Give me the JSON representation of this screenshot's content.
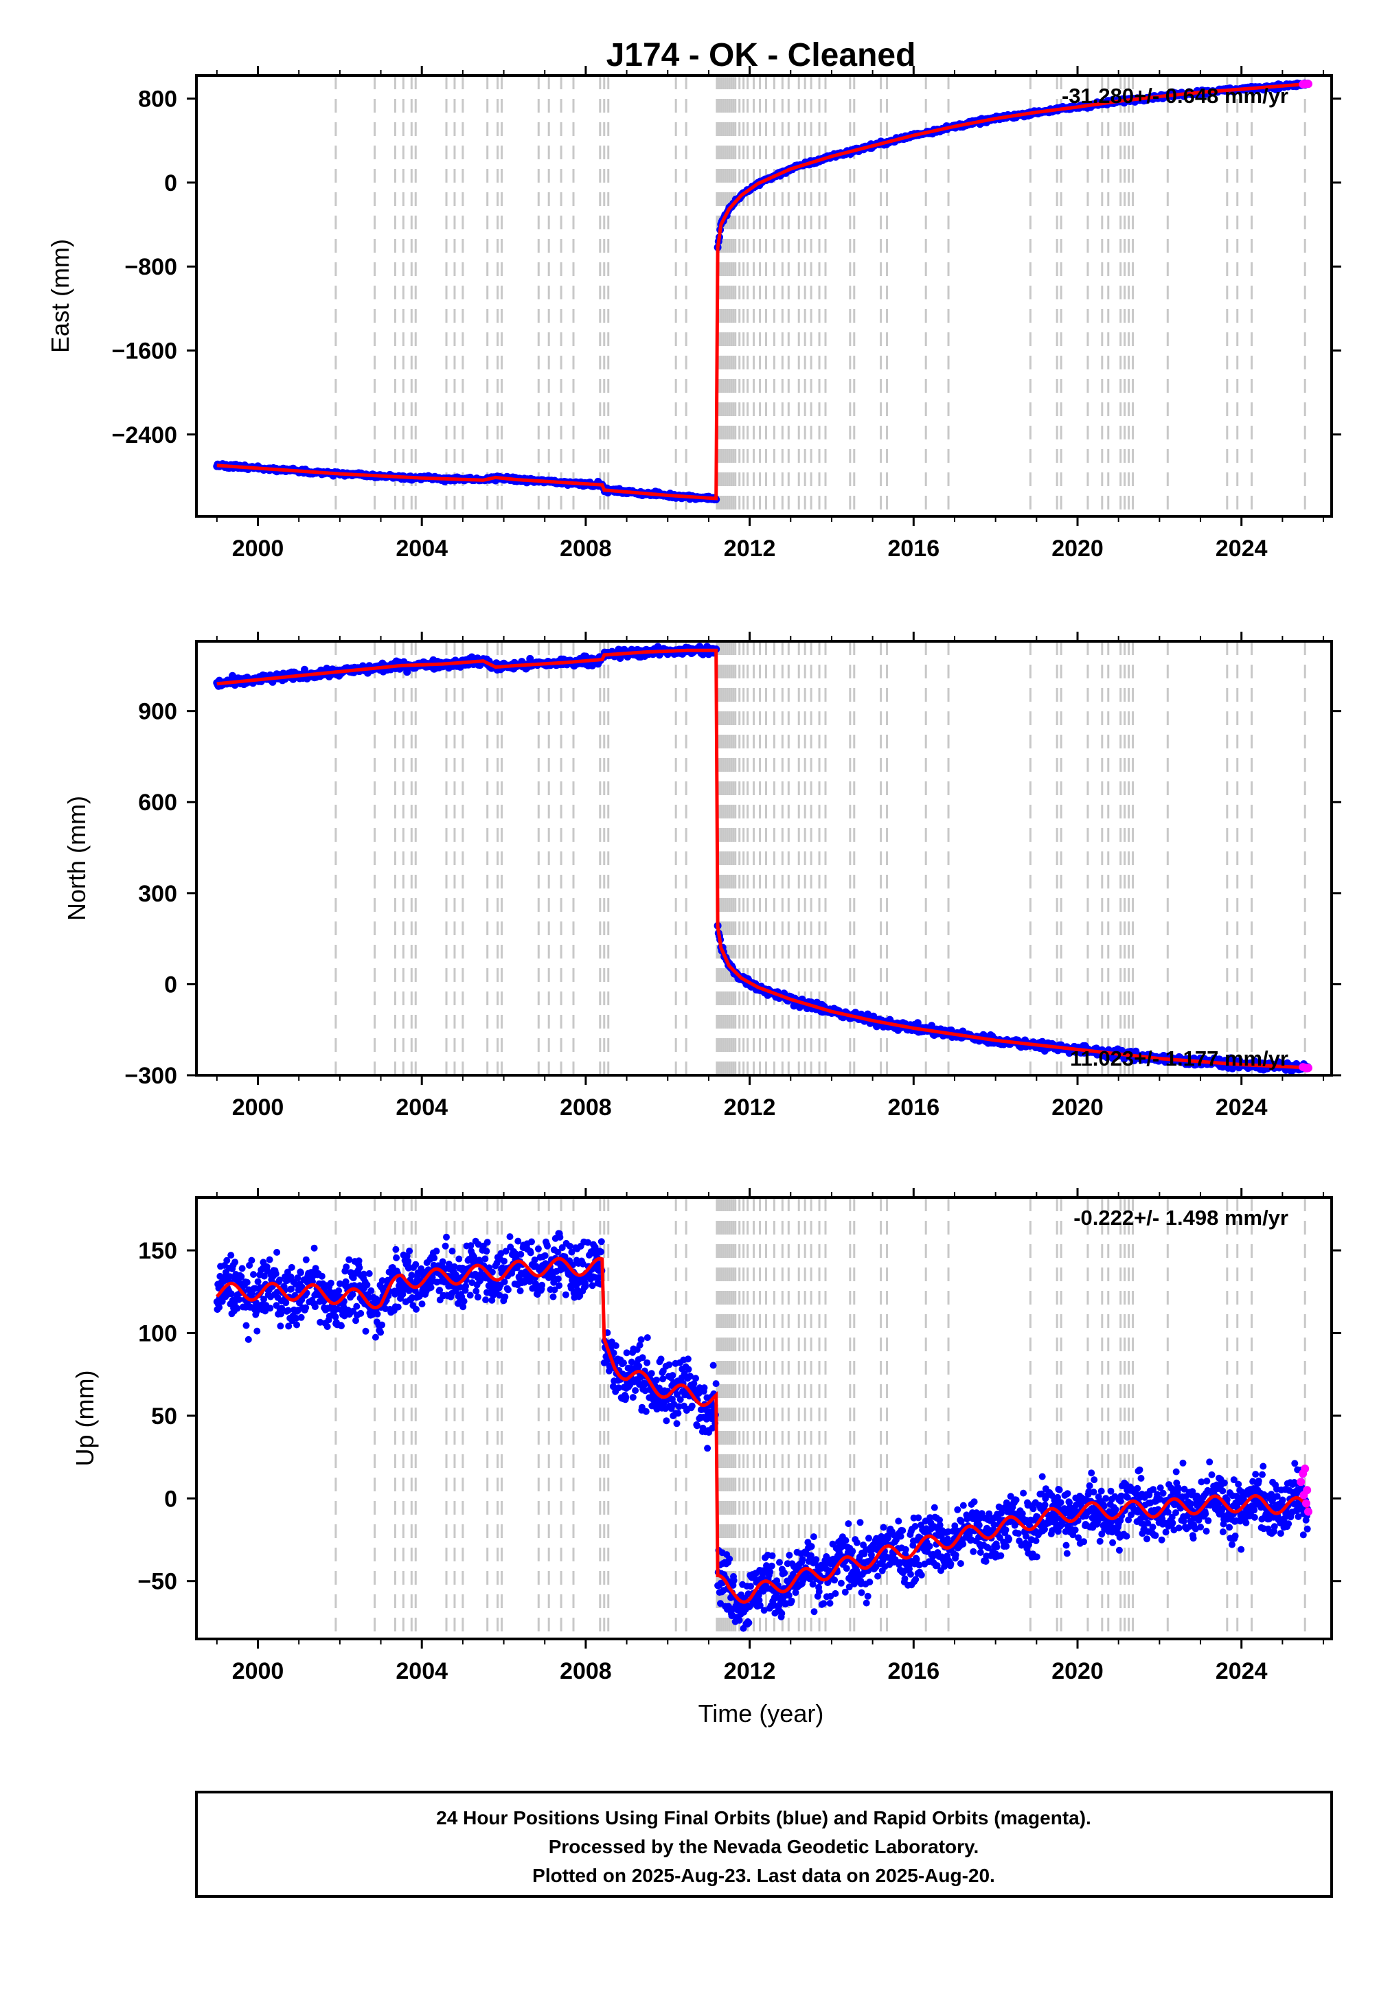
{
  "title": "J174  - OK - Cleaned",
  "colors": {
    "final": "#0000ff",
    "rapid": "#ff00ff",
    "model": "#ff0000",
    "event_lines": "#c8c8c8",
    "frame": "#000000"
  },
  "x_axis": {
    "label": "Time (year)",
    "range": [
      1998.5,
      2026.2
    ],
    "ticks": [
      2000,
      2004,
      2008,
      2012,
      2016,
      2020,
      2024
    ],
    "tick_labels": [
      "2000",
      "2004",
      "2008",
      "2012",
      "2016",
      "2020",
      "2024"
    ]
  },
  "event_lines": [
    2001.9,
    2002.85,
    2003.35,
    2003.55,
    2003.75,
    2003.85,
    2004.6,
    2004.8,
    2005.0,
    2005.6,
    2005.85,
    2005.95,
    2006.85,
    2007.1,
    2007.4,
    2007.7,
    2008.35,
    2008.45,
    2008.55,
    2010.2,
    2010.45,
    2011.2,
    2011.25,
    2011.3,
    2011.35,
    2011.4,
    2011.45,
    2011.5,
    2011.55,
    2011.6,
    2011.65,
    2011.75,
    2011.85,
    2011.95,
    2012.1,
    2012.25,
    2012.4,
    2012.6,
    2012.8,
    2012.95,
    2013.2,
    2013.35,
    2013.5,
    2013.7,
    2013.85,
    2014.45,
    2014.55,
    2015.2,
    2015.35,
    2016.3,
    2016.85,
    2018.85,
    2019.5,
    2019.6,
    2020.25,
    2020.6,
    2020.75,
    2021.05,
    2021.15,
    2021.25,
    2021.35,
    2022.2,
    2023.65,
    2023.9,
    2024.25,
    2025.55
  ],
  "chart_data": [
    {
      "type": "scatter",
      "panel": "east",
      "ylabel": "East (mm)",
      "ylim": [
        -3180,
        1020
      ],
      "yticks": [
        -2400,
        -1600,
        -800,
        0,
        800
      ],
      "ytick_labels": [
        "−2400",
        "−1600",
        "−800",
        "0",
        "800"
      ],
      "rate_label": "-31.280+/- 0.648 mm/yr",
      "scatter": 10,
      "segments": [
        {
          "x": [
            1999.0,
            2002.0,
            2004.0,
            2005.5,
            2005.8,
            2006.3,
            2008.4,
            2008.45,
            2010.0,
            2011.18
          ],
          "y": [
            -2695,
            -2775,
            -2815,
            -2835,
            -2810,
            -2830,
            -2880,
            -2930,
            -2980,
            -3010
          ]
        },
        {
          "x": [
            2011.22,
            2011.3,
            2011.5,
            2011.8,
            2012.2,
            2013.0,
            2014.0,
            2015.0,
            2016.0,
            2017.0,
            2018.0,
            2019.0,
            2020.0,
            2021.0,
            2022.0,
            2023.0,
            2024.0,
            2025.62
          ],
          "y": [
            -620,
            -400,
            -250,
            -120,
            -10,
            130,
            250,
            350,
            450,
            535,
            610,
            670,
            720,
            775,
            820,
            860,
            890,
            940
          ]
        }
      ],
      "rapid_points": {
        "x": [
          2025.5,
          2025.55,
          2025.6,
          2025.63
        ],
        "y": [
          937,
          939,
          941,
          940
        ]
      }
    },
    {
      "type": "scatter",
      "panel": "north",
      "ylabel": "North (mm)",
      "ylim": [
        -300,
        1130
      ],
      "yticks": [
        -300,
        0,
        300,
        600,
        900
      ],
      "ytick_labels": [
        "−300",
        "0",
        "300",
        "600",
        "900"
      ],
      "rate_label": "11.023+/- 1.177 mm/yr",
      "scatter": 7,
      "segments": [
        {
          "x": [
            1999.0,
            2000.5,
            2002.0,
            2003.5,
            2004.5,
            2005.5,
            2005.8,
            2006.3,
            2007.5,
            2008.4,
            2008.45,
            2009.5,
            2010.5,
            2011.18
          ],
          "y": [
            990,
            1010,
            1030,
            1050,
            1055,
            1065,
            1045,
            1050,
            1060,
            1070,
            1085,
            1095,
            1100,
            1100
          ]
        },
        {
          "x": [
            2011.22,
            2011.3,
            2011.5,
            2011.8,
            2012.2,
            2013.0,
            2014.0,
            2015.0,
            2016.0,
            2017.0,
            2018.0,
            2019.0,
            2020.0,
            2021.0,
            2022.0,
            2023.0,
            2024.0,
            2025.62
          ],
          "y": [
            190,
            120,
            60,
            20,
            -10,
            -50,
            -90,
            -120,
            -145,
            -165,
            -185,
            -200,
            -215,
            -230,
            -245,
            -255,
            -265,
            -275
          ]
        }
      ],
      "rapid_points": {
        "x": [
          2025.5,
          2025.55,
          2025.6,
          2025.63
        ],
        "y": [
          -273,
          -275,
          -277,
          -276
        ]
      }
    },
    {
      "type": "scatter",
      "panel": "up",
      "ylabel": "Up (mm)",
      "ylim": [
        -85,
        182
      ],
      "yticks": [
        -50,
        0,
        50,
        100,
        150
      ],
      "ytick_labels": [
        "−50",
        "0",
        "50",
        "100",
        "150"
      ],
      "rate_label": "-0.222+/- 1.498 mm/yr",
      "scatter": 9,
      "seasonal": 5,
      "segments": [
        {
          "x": [
            1999.0,
            2001.0,
            2003.0,
            2003.5,
            2005.0,
            2007.0,
            2008.4
          ],
          "y": [
            125,
            125,
            120,
            132,
            135,
            140,
            140
          ]
        },
        {
          "x": [
            2008.45,
            2008.7,
            2009.0,
            2010.0,
            2011.18
          ],
          "y": [
            92,
            82,
            75,
            65,
            60
          ]
        },
        {
          "x": [
            2011.22,
            2011.5,
            2012.0,
            2013.0,
            2014.0,
            2015.0,
            2016.0,
            2017.0,
            2018.0,
            2019.0,
            2020.0,
            2021.0,
            2022.0,
            2023.0,
            2024.0,
            2025.62
          ],
          "y": [
            -50,
            -57,
            -58,
            -50,
            -43,
            -36,
            -30,
            -24,
            -18,
            -13,
            -8,
            -7,
            -6,
            -4,
            -3,
            -5
          ]
        }
      ],
      "rapid_points": {
        "x": [
          2025.45,
          2025.5,
          2025.55,
          2025.6,
          2025.63,
          2025.58,
          2025.52
        ],
        "y": [
          10,
          15,
          18,
          5,
          -8,
          -3,
          2
        ]
      }
    }
  ],
  "footer": {
    "line1": "24 Hour Positions Using Final Orbits (blue) and Rapid Orbits (magenta).",
    "line2": "Processed by the Nevada Geodetic Laboratory.",
    "line3": "Plotted on 2025-Aug-23. Last data on 2025-Aug-20."
  }
}
